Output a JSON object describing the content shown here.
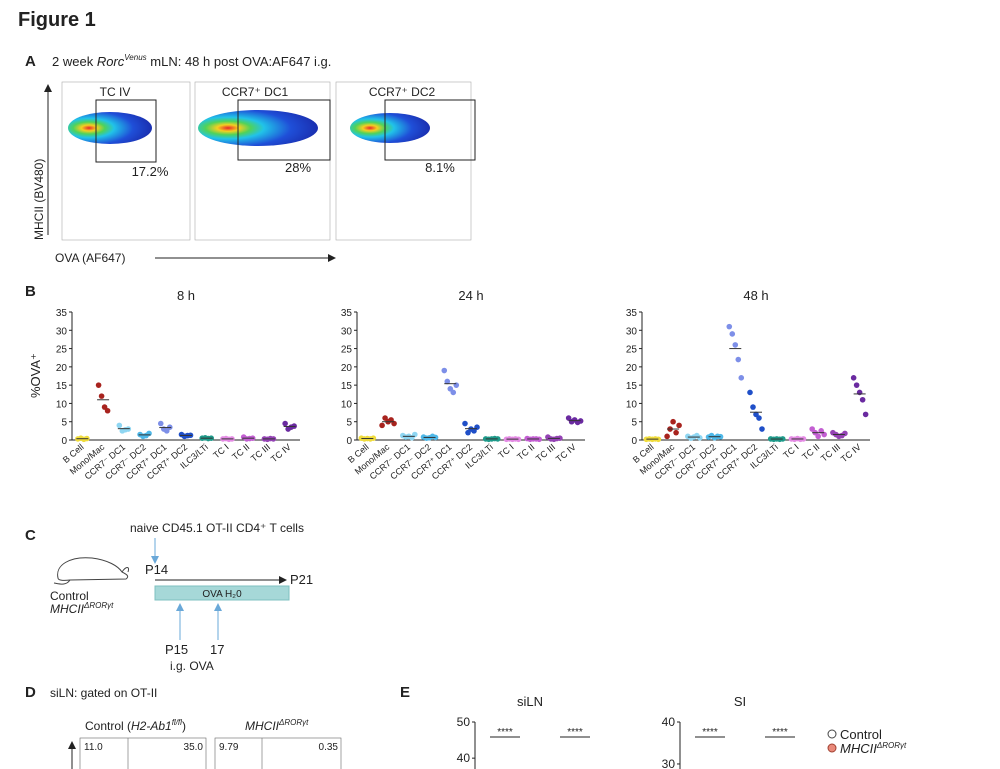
{
  "figure_title": "Figure 1",
  "panel_a": {
    "label": "A",
    "title": [
      "2 week ",
      "Rorc",
      "Venus",
      " mLN: 48 h post OVA:AF647 i.g."
    ],
    "y_label": "MHCII (BV480)",
    "x_label": "OVA (AF647)",
    "plots": [
      {
        "gate": "TC IV",
        "percent": "17.2%"
      },
      {
        "gate": "CCR7⁺ DC1",
        "percent": "28%"
      },
      {
        "gate": "CCR7⁺ DC2",
        "percent": "8.1%"
      }
    ]
  },
  "panel_b": {
    "label": "B"
  },
  "chart_data": [
    {
      "type": "dot",
      "title": "8 h",
      "y_label": "%OVA⁺",
      "categories": [
        "B Cell",
        "Mono/Mac",
        "CCR7⁻ DC1",
        "CCR7⁻ DC2",
        "CCR7⁺ DC1",
        "CCR7⁺ DC2",
        "ILC3/LTi",
        "TC I",
        "TC II",
        "TC III",
        "TC IV"
      ],
      "colors": [
        "#f0dc3c",
        "#a8231e",
        "#8fd6f2",
        "#4fb8e8",
        "#7d8fe8",
        "#1f4fc8",
        "#1f9a8a",
        "#e48be4",
        "#c35fd2",
        "#9443b4",
        "#6a2aa0"
      ],
      "points": [
        [
          0.3,
          0.5,
          0.2,
          0.4
        ],
        [
          15,
          12,
          9,
          8
        ],
        [
          4,
          2.5,
          2.8,
          3
        ],
        [
          1.5,
          1,
          1.2,
          1.8
        ],
        [
          4.5,
          3,
          2.5,
          3.5
        ],
        [
          1.5,
          1,
          1.2,
          1.3
        ],
        [
          0.5,
          0.6,
          0.4,
          0.5
        ],
        [
          0.3,
          0.4,
          0.2,
          0.3
        ],
        [
          0.8,
          0.3,
          0.4,
          0.5
        ],
        [
          0.3,
          0.2,
          0.4,
          0.3
        ],
        [
          4.5,
          3,
          3.5,
          3.8
        ]
      ],
      "means": [
        0.35,
        11,
        3.1,
        1.4,
        3.4,
        1.25,
        0.5,
        0.3,
        0.5,
        0.3,
        3.7
      ],
      "ylim": [
        0,
        35
      ],
      "yticks": [
        0,
        5,
        10,
        15,
        20,
        25,
        30,
        35
      ]
    },
    {
      "type": "dot",
      "title": "24 h",
      "categories": [
        "B Cell",
        "Mono/Mac",
        "CCR7⁻ DC1",
        "CCR7⁻ DC2",
        "CCR7⁺ DC1",
        "CCR7⁺ DC2",
        "ILC3/LTi",
        "TC I",
        "TC II",
        "TC III",
        "TC IV"
      ],
      "colors": [
        "#f0dc3c",
        "#a8231e",
        "#8fd6f2",
        "#4fb8e8",
        "#7d8fe8",
        "#1f4fc8",
        "#1f9a8a",
        "#e48be4",
        "#c35fd2",
        "#9443b4",
        "#6a2aa0"
      ],
      "points": [
        [
          0.5,
          0.3,
          0.4,
          0.3,
          0.5
        ],
        [
          4,
          6,
          5,
          5.5,
          4.5
        ],
        [
          1.2,
          0.8,
          1,
          0.6,
          1.5
        ],
        [
          0.8,
          0.5,
          0.6,
          1,
          0.7
        ],
        [
          19,
          16,
          14,
          13,
          15
        ],
        [
          4.5,
          2,
          3,
          2.5,
          3.5
        ],
        [
          0.3,
          0.2,
          0.3,
          0.4,
          0.3
        ],
        [
          0.2,
          0.3,
          0.2,
          0.3,
          0.2
        ],
        [
          0.4,
          0.2,
          0.3,
          0.3,
          0.2
        ],
        [
          0.8,
          0.3,
          0.2,
          0.4,
          0.5
        ],
        [
          6,
          5,
          5.5,
          4.8,
          5.2
        ]
      ],
      "means": [
        0.4,
        5,
        1,
        0.7,
        15.4,
        3.1,
        0.3,
        0.24,
        0.28,
        0.44,
        5.3
      ],
      "ylim": [
        0,
        35
      ],
      "yticks": [
        0,
        5,
        10,
        15,
        20,
        25,
        30,
        35
      ]
    },
    {
      "type": "dot",
      "title": "48 h",
      "categories": [
        "B Cell",
        "Mono/Mac",
        "CCR7⁻ DC1",
        "CCR7⁻ DC2",
        "CCR7⁺ DC1",
        "CCR7⁺ DC2",
        "ILC3/LTi",
        "TC I",
        "TC II",
        "TC III",
        "TC IV"
      ],
      "colors": [
        "#f0dc3c",
        "#a8231e",
        "#8fd6f2",
        "#4fb8e8",
        "#7d8fe8",
        "#1f4fc8",
        "#1f9a8a",
        "#e48be4",
        "#c35fd2",
        "#9443b4",
        "#6a2aa0"
      ],
      "points": [
        [
          0.2,
          0.3,
          0.2,
          0.3,
          0.2
        ],
        [
          1,
          3,
          5,
          2,
          4
        ],
        [
          1,
          0.5,
          0.8,
          1.2,
          0.6
        ],
        [
          0.8,
          1.2,
          0.6,
          1,
          0.9
        ],
        [
          31,
          29,
          26,
          22,
          17
        ],
        [
          13,
          9,
          7,
          6,
          3
        ],
        [
          0.3,
          0.2,
          0.3,
          0.2,
          0.3
        ],
        [
          0.3,
          0.2,
          0.4,
          0.2,
          0.3
        ],
        [
          3,
          2,
          1,
          2.5,
          1.5
        ],
        [
          2,
          1.5,
          1,
          1.2,
          1.8
        ],
        [
          17,
          15,
          13,
          11,
          7
        ]
      ],
      "means": [
        0.24,
        3,
        0.8,
        0.9,
        25,
        7.6,
        0.26,
        0.28,
        2,
        1.5,
        12.6
      ],
      "ylim": [
        0,
        35
      ],
      "yticks": [
        0,
        5,
        10,
        15,
        20,
        25,
        30,
        35
      ]
    }
  ],
  "panel_c": {
    "label": "C",
    "cells": "naive CD45.1 OT-II CD4⁺ T cells",
    "start": "P14",
    "end": "P21",
    "treatment": "OVA H₂0",
    "gavage_days": [
      "P15",
      "17"
    ],
    "gavage": "i.g. OVA",
    "groups": [
      "Control",
      [
        "MHCII",
        "ΔRORγt"
      ]
    ]
  },
  "panel_d": {
    "label": "D",
    "title": "siLN: gated on OT-II",
    "control": [
      "Control (",
      "H2-Ab1",
      "fl/fl",
      ")"
    ],
    "mutant": [
      "MHCII",
      "ΔRORγt"
    ],
    "quadrants": [
      [
        "11.0",
        "35.0"
      ],
      [
        "9.79",
        "0.35"
      ]
    ]
  },
  "panel_e": {
    "label": "E",
    "significance": "****",
    "plots": [
      {
        "title": "siLN",
        "ylim": [
          37,
          50
        ],
        "yticks": [
          40,
          50
        ]
      },
      {
        "title": "SI",
        "ylim": [
          28.8,
          40
        ],
        "yticks": [
          30,
          40
        ]
      }
    ],
    "legend": [
      "Control",
      [
        "MHCII",
        "ΔRORγt"
      ]
    ]
  }
}
